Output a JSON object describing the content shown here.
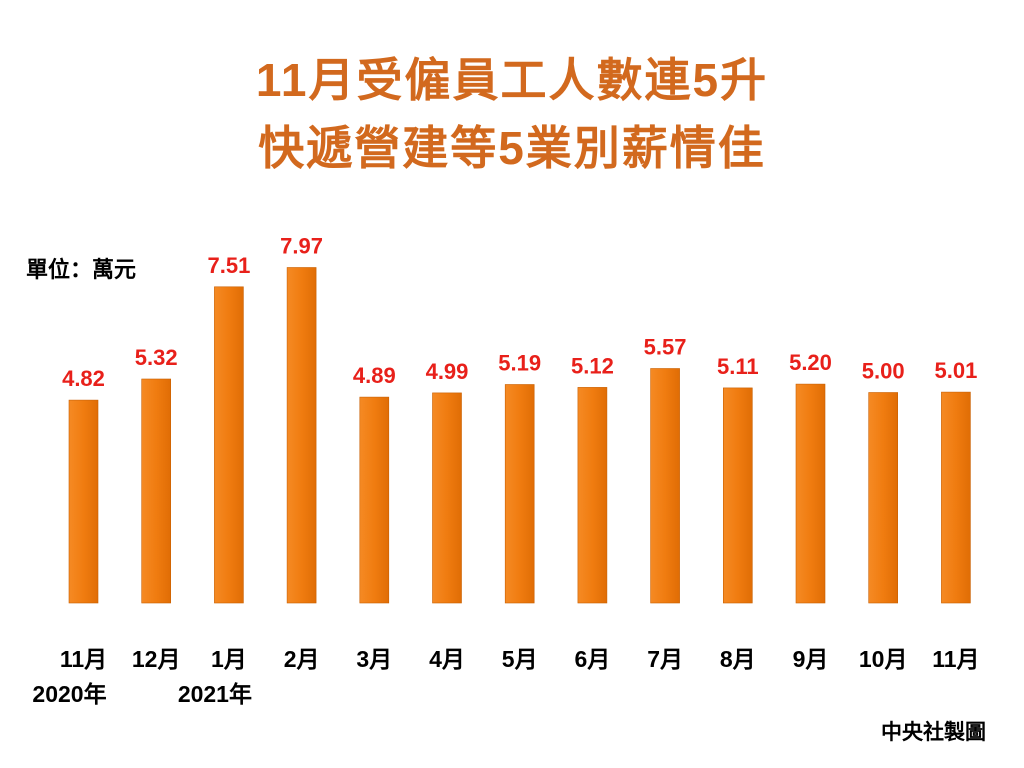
{
  "chart_data": {
    "type": "bar",
    "title_line1": "11月受僱員工人數連5升",
    "title_line2": "快遞營建等5業別薪情佳",
    "unit_label": "單位：萬元",
    "categories": [
      "11月",
      "12月",
      "1月",
      "2月",
      "3月",
      "4月",
      "5月",
      "6月",
      "7月",
      "8月",
      "9月",
      "10月",
      "11月"
    ],
    "year_labels": [
      {
        "index": 0,
        "label": "2020年"
      },
      {
        "index": 2,
        "label": "2021年"
      }
    ],
    "values": [
      4.82,
      5.32,
      7.51,
      7.97,
      4.89,
      4.99,
      5.19,
      5.12,
      5.57,
      5.11,
      5.2,
      5.0,
      5.01
    ],
    "value_labels": [
      "4.82",
      "5.32",
      "7.51",
      "7.97",
      "4.89",
      "4.99",
      "5.19",
      "5.12",
      "5.57",
      "5.11",
      "5.20",
      "5.00",
      "5.01"
    ],
    "bar_color": "#f07c10",
    "value_label_color": "#e8201a",
    "title_color": "#d2691e",
    "grid": false,
    "legend": "none"
  },
  "source": "中央社製圖"
}
